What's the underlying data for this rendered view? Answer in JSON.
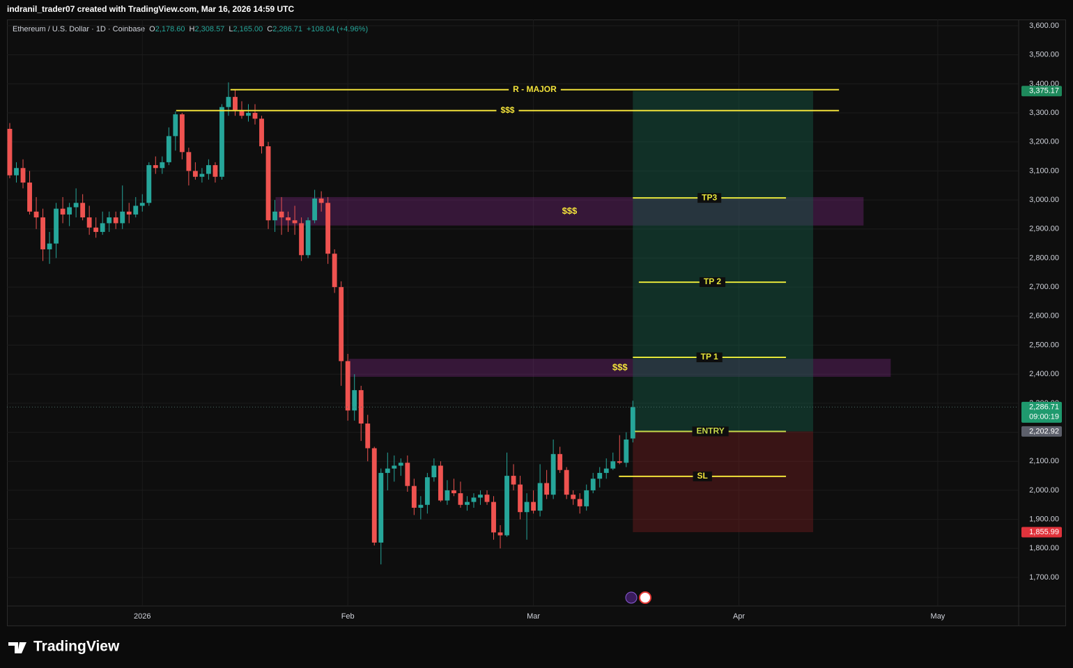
{
  "chart_data": {
    "type": "candlestick",
    "header": "indranil_trader07 created with TradingView.com, Mar 16, 2026 14:59 UTC",
    "legend": {
      "symbol": "Ethereum / U.S. Dollar · 1D · Coinbase",
      "fields": [
        {
          "key": "O",
          "value": "2,178.60"
        },
        {
          "key": "H",
          "value": "2,308.57"
        },
        {
          "key": "L",
          "value": "2,165.00"
        },
        {
          "key": "C",
          "value": "2,286.71"
        }
      ],
      "change": "+108.04 (+4.96%)"
    },
    "up_color": "#26a69a",
    "down_color": "#ef5350",
    "open": [
      3245,
      3085,
      3110,
      3060,
      2960,
      2940,
      2830,
      2850,
      2970,
      2950,
      2975,
      2990,
      2940,
      2905,
      2890,
      2920,
      2940,
      2920,
      2960,
      2950,
      2980,
      2990,
      3120,
      3110,
      3130,
      3220,
      3295,
      3165,
      3100,
      3080,
      3090,
      3120,
      3080,
      3320,
      3355,
      3310,
      3290,
      3300,
      3280,
      3185,
      2930,
      2960,
      2940,
      2930,
      2920,
      2810,
      2930,
      3005,
      2990,
      2815,
      2700,
      2445,
      2275,
      2345,
      2230,
      2145,
      1820,
      2060,
      2075,
      2085,
      2095,
      2015,
      1940,
      1950,
      2045,
      2085,
      1965,
      2000,
      1990,
      1950,
      1960,
      1975,
      1985,
      1960,
      1855,
      1845,
      2050,
      2020,
      1925,
      1960,
      1930,
      2025,
      1985,
      2125,
      2070,
      1985,
      1970,
      1945,
      2000,
      2040,
      2060,
      2075,
      2100,
      2095,
      2178.6
    ],
    "high": [
      3265,
      3130,
      3140,
      3100,
      3010,
      2970,
      2890,
      2990,
      3010,
      2990,
      3040,
      3020,
      2980,
      2940,
      2960,
      2960,
      2960,
      3050,
      2990,
      3010,
      3020,
      3130,
      3150,
      3150,
      3250,
      3305,
      3300,
      3180,
      3130,
      3110,
      3140,
      3130,
      3330,
      3405,
      3380,
      3340,
      3330,
      3330,
      3290,
      3200,
      3000,
      3010,
      2960,
      2980,
      2940,
      2940,
      3035,
      3030,
      3010,
      2830,
      2720,
      2470,
      2400,
      2360,
      2260,
      2150,
      2075,
      2130,
      2120,
      2110,
      2120,
      2040,
      1980,
      2060,
      2110,
      2100,
      2035,
      2040,
      2030,
      1980,
      1990,
      2000,
      2000,
      1980,
      1880,
      2130,
      2090,
      2050,
      1990,
      2000,
      2090,
      2070,
      2175,
      2150,
      2080,
      2000,
      1990,
      2020,
      2060,
      2080,
      2110,
      2130,
      2190,
      2200,
      2308.57
    ],
    "low": [
      3075,
      3060,
      3040,
      2950,
      2900,
      2790,
      2780,
      2800,
      2920,
      2910,
      2940,
      2930,
      2880,
      2870,
      2880,
      2890,
      2900,
      2900,
      2920,
      2940,
      2960,
      2980,
      3090,
      3090,
      3120,
      3170,
      3140,
      3050,
      3070,
      3060,
      3070,
      3060,
      3070,
      3290,
      3290,
      3280,
      3270,
      3260,
      3160,
      2900,
      2890,
      2880,
      2890,
      2880,
      2790,
      2800,
      2920,
      2960,
      2780,
      2680,
      2360,
      2240,
      2240,
      2170,
      2100,
      1810,
      1745,
      2000,
      2030,
      2050,
      1995,
      1915,
      1900,
      1920,
      2030,
      1960,
      1950,
      1980,
      1940,
      1930,
      1940,
      1950,
      1950,
      1830,
      1800,
      1840,
      2000,
      1900,
      1830,
      1920,
      1910,
      1970,
      1970,
      2060,
      1970,
      1950,
      1920,
      1930,
      1990,
      2010,
      2040,
      2070,
      2090,
      2080,
      2165
    ],
    "close": [
      3085,
      3110,
      3060,
      2960,
      2940,
      2830,
      2850,
      2970,
      2950,
      2975,
      2990,
      2940,
      2905,
      2890,
      2920,
      2940,
      2920,
      2960,
      2950,
      2980,
      2990,
      3120,
      3110,
      3130,
      3220,
      3295,
      3165,
      3100,
      3080,
      3090,
      3120,
      3080,
      3320,
      3355,
      3310,
      3290,
      3300,
      3280,
      3185,
      2930,
      2960,
      2940,
      2930,
      2920,
      2810,
      2930,
      3005,
      2990,
      2815,
      2700,
      2445,
      2275,
      2345,
      2230,
      2145,
      1820,
      2060,
      2075,
      2085,
      2095,
      2015,
      1940,
      1950,
      2045,
      2085,
      1965,
      2000,
      1990,
      1950,
      1960,
      1975,
      1985,
      1960,
      1855,
      1845,
      2050,
      2020,
      1925,
      1960,
      1930,
      2025,
      1985,
      2125,
      2070,
      1985,
      1970,
      1945,
      2000,
      2040,
      2060,
      2075,
      2100,
      2095,
      2175,
      2286.71
    ],
    "xlim": [
      -0.42,
      152.2
    ],
    "xticks": [
      {
        "value": 20,
        "label": "2026"
      },
      {
        "value": 51,
        "label": "Feb"
      },
      {
        "value": 79,
        "label": "Mar"
      },
      {
        "value": 110,
        "label": "Apr"
      },
      {
        "value": 140,
        "label": "May"
      }
    ],
    "ylim": [
      1601.6,
      3621.6
    ],
    "yticks": [
      {
        "value": 1700,
        "label": "1,700.00"
      },
      {
        "value": 1800,
        "label": "1,800.00"
      },
      {
        "value": 1900,
        "label": "1,900.00"
      },
      {
        "value": 2000,
        "label": "2,000.00"
      },
      {
        "value": 2100,
        "label": "2,100.00"
      },
      {
        "value": 2200,
        "label": "2,200.00"
      },
      {
        "value": 2300,
        "label": "2,300.00"
      },
      {
        "value": 2400,
        "label": "2,400.00"
      },
      {
        "value": 2500,
        "label": "2,500.00"
      },
      {
        "value": 2600,
        "label": "2,600.00"
      },
      {
        "value": 2700,
        "label": "2,700.00"
      },
      {
        "value": 2800,
        "label": "2,800.00"
      },
      {
        "value": 2900,
        "label": "2,900.00"
      },
      {
        "value": 3000,
        "label": "3,000.00"
      },
      {
        "value": 3100,
        "label": "3,100.00"
      },
      {
        "value": 3200,
        "label": "3,200.00"
      },
      {
        "value": 3300,
        "label": "3,300.00"
      },
      {
        "value": 3400,
        "label": "3,400.00"
      },
      {
        "value": 3500,
        "label": "3,500.00"
      },
      {
        "value": 3600,
        "label": "3,600.00"
      }
    ],
    "grid": true,
    "zones": [
      {
        "label": "$$$",
        "top": 3010,
        "bottom": 2912,
        "from": 40.1,
        "to": 128.8,
        "color": "rgba(120,40,125,0.38)"
      },
      {
        "label": "$$$",
        "top": 2453,
        "bottom": 2391,
        "from": 51.2,
        "to": 132.9,
        "color": "rgba(120,40,125,0.38)"
      }
    ],
    "position": {
      "from": 94,
      "to": 121.2,
      "target": {
        "value": 3375.17,
        "label": "3,375.17"
      },
      "entry": {
        "value": 2202.92,
        "label": "2,202.92"
      },
      "stop": {
        "value": 1855.99,
        "label": "1,855.99"
      },
      "profit_color": "rgba(22,90,70,0.45)",
      "loss_color": "rgba(110,28,32,0.45)"
    },
    "levels": [
      {
        "label": "R - MAJOR",
        "value": 3380,
        "from": 33.3,
        "to": 125.1,
        "color": "#f2e23a"
      },
      {
        "label": "$$$",
        "value": 3308,
        "from": 25.1,
        "to": 125.1,
        "color": "#f2e23a"
      },
      {
        "label": "TP3",
        "value": 3007,
        "from": 94,
        "to": 117.1,
        "color": "#e6e63a"
      },
      {
        "label": "TP 2",
        "value": 2717,
        "from": 94.9,
        "to": 117.1,
        "color": "#e6e63a"
      },
      {
        "label": "TP 1",
        "value": 2458,
        "from": 94,
        "to": 117.1,
        "color": "#e6e63a"
      },
      {
        "label": "ENTRY",
        "value": 2202.92,
        "from": 94.3,
        "to": 117.1,
        "color": "#c5d84a"
      },
      {
        "label": "SL",
        "value": 2048,
        "from": 91.9,
        "to": 117.1,
        "color": "#f2e23a"
      }
    ],
    "last_label": "2,286.71",
    "countdown": "09:00:19",
    "brand": "TradingView"
  }
}
